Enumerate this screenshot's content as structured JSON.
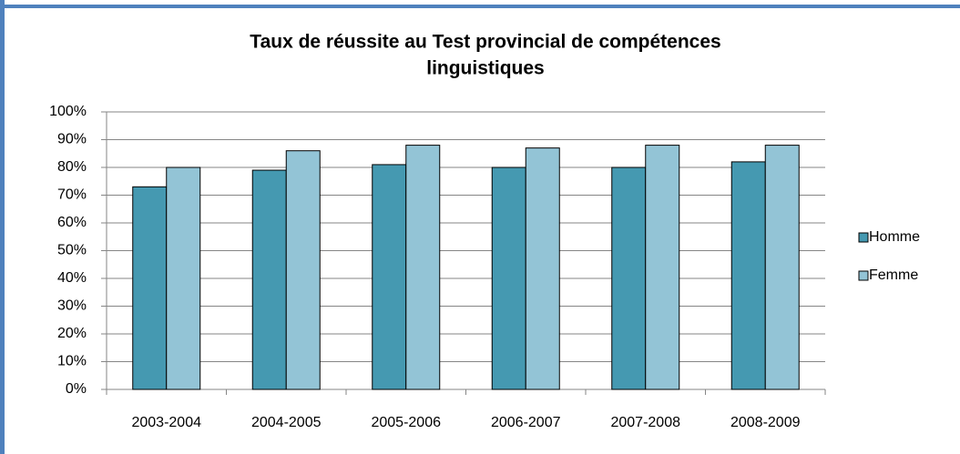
{
  "chart_data": {
    "type": "bar",
    "title": [
      "Taux de réussite au Test provincial de compétences",
      "linguistiques"
    ],
    "categories": [
      "2003-2004",
      "2004-2005",
      "2005-2006",
      "2006-2007",
      "2007-2008",
      "2008-2009"
    ],
    "series": [
      {
        "name": "Homme",
        "color": "#4599b1",
        "values": [
          73,
          79,
          81,
          80,
          80,
          82
        ]
      },
      {
        "name": "Femme",
        "color": "#93c4d6",
        "values": [
          80,
          86,
          88,
          87,
          88,
          88
        ]
      }
    ],
    "ylim": [
      0,
      100
    ],
    "yticks": [
      {
        "value": 0,
        "label": "0%"
      },
      {
        "value": 10,
        "label": "10%"
      },
      {
        "value": 20,
        "label": "20%"
      },
      {
        "value": 30,
        "label": "30%"
      },
      {
        "value": 40,
        "label": "40%"
      },
      {
        "value": 50,
        "label": "50%"
      },
      {
        "value": 60,
        "label": "60%"
      },
      {
        "value": 70,
        "label": "70%"
      },
      {
        "value": 80,
        "label": "80%"
      },
      {
        "value": 90,
        "label": "90%"
      },
      {
        "value": 100,
        "label": "100%"
      }
    ],
    "grid": true,
    "legend": "right"
  }
}
